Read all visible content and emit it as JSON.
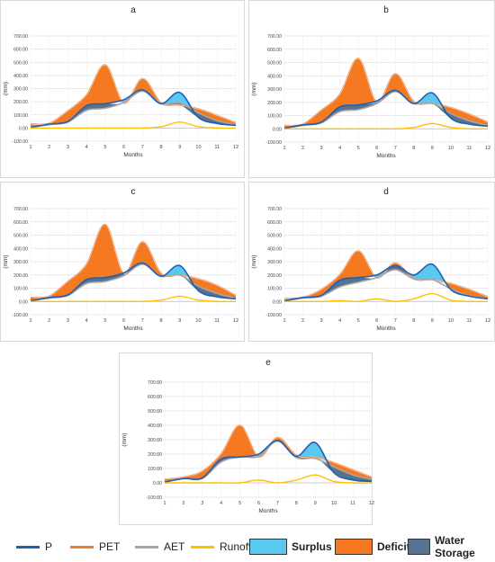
{
  "colors": {
    "P": "#1f5fb4",
    "PET": "#ed7d31",
    "AET": "#a6a6a6",
    "Runoff": "#ffc000",
    "Surplus": "#5bc8ef",
    "Deficit": "#f47920",
    "WaterStorage": "#56728e"
  },
  "legend": {
    "p": "P",
    "pet": "PET",
    "aet": "AET",
    "runoff": "Runoff",
    "surplus": "Surplus",
    "deficit": "Deficit",
    "storage": "Water Storage"
  },
  "chart_data": [
    {
      "type": "area",
      "title": "a",
      "xlabel": "Months",
      "ylabel": "(mm)",
      "x": [
        1,
        2,
        3,
        4,
        5,
        6,
        7,
        8,
        9,
        10,
        11,
        12
      ],
      "ylim": [
        -100,
        700
      ],
      "yticks": [
        "-100.00",
        "0.00",
        "100.00",
        "200.00",
        "300.00",
        "400.00",
        "500.00",
        "600.00",
        "700.00"
      ],
      "grid": true,
      "series": [
        {
          "name": "P",
          "values": [
            5,
            30,
            50,
            170,
            185,
            215,
            290,
            185,
            270,
            80,
            35,
            20
          ]
        },
        {
          "name": "PET",
          "values": [
            30,
            35,
            130,
            250,
            480,
            190,
            375,
            190,
            175,
            145,
            95,
            40
          ]
        },
        {
          "name": "AET",
          "values": [
            5,
            25,
            45,
            135,
            150,
            195,
            280,
            185,
            190,
            115,
            55,
            25
          ]
        },
        {
          "name": "Runoff",
          "values": [
            0,
            0,
            0,
            0,
            0,
            0,
            0,
            10,
            45,
            10,
            0,
            0
          ]
        }
      ]
    },
    {
      "type": "area",
      "title": "b",
      "xlabel": "Months",
      "ylabel": "(mm)",
      "x": [
        1,
        2,
        3,
        4,
        5,
        6,
        7,
        8,
        9,
        10,
        11,
        12
      ],
      "ylim": [
        -100,
        700
      ],
      "yticks": [
        "-100.00",
        "0.00",
        "100.00",
        "200.00",
        "300.00",
        "400.00",
        "500.00",
        "600.00",
        "700.00"
      ],
      "grid": true,
      "series": [
        {
          "name": "P",
          "values": [
            5,
            30,
            50,
            165,
            180,
            210,
            290,
            190,
            270,
            80,
            35,
            20
          ]
        },
        {
          "name": "PET",
          "values": [
            25,
            35,
            140,
            260,
            530,
            200,
            415,
            205,
            190,
            160,
            110,
            50
          ]
        },
        {
          "name": "AET",
          "values": [
            5,
            25,
            45,
            130,
            145,
            190,
            280,
            190,
            195,
            115,
            60,
            25
          ]
        },
        {
          "name": "Runoff",
          "values": [
            0,
            0,
            0,
            0,
            0,
            0,
            0,
            10,
            40,
            10,
            0,
            0
          ]
        }
      ]
    },
    {
      "type": "area",
      "title": "c",
      "xlabel": "Months",
      "ylabel": "(mm)",
      "x": [
        1,
        2,
        3,
        4,
        5,
        6,
        7,
        8,
        9,
        10,
        11,
        12
      ],
      "ylim": [
        -100,
        700
      ],
      "yticks": [
        "-100.00",
        "0.00",
        "100.00",
        "200.00",
        "300.00",
        "400.00",
        "500.00",
        "600.00",
        "700.00"
      ],
      "grid": true,
      "series": [
        {
          "name": "P",
          "values": [
            5,
            30,
            50,
            165,
            180,
            215,
            290,
            190,
            270,
            80,
            35,
            20
          ]
        },
        {
          "name": "PET",
          "values": [
            30,
            40,
            150,
            280,
            580,
            210,
            450,
            210,
            200,
            170,
            120,
            45
          ]
        },
        {
          "name": "AET",
          "values": [
            5,
            25,
            45,
            135,
            150,
            195,
            280,
            190,
            200,
            115,
            60,
            25
          ]
        },
        {
          "name": "Runoff",
          "values": [
            0,
            0,
            0,
            0,
            0,
            0,
            0,
            10,
            40,
            10,
            0,
            0
          ]
        }
      ]
    },
    {
      "type": "area",
      "title": "d",
      "xlabel": "Months",
      "ylabel": "(mm)",
      "x": [
        1,
        2,
        3,
        4,
        5,
        6,
        7,
        8,
        9,
        10,
        11,
        12
      ],
      "ylim": [
        -100,
        700
      ],
      "yticks": [
        "-100.00",
        "0.00",
        "100.00",
        "200.00",
        "300.00",
        "400.00",
        "500.00",
        "600.00",
        "700.00"
      ],
      "grid": true,
      "series": [
        {
          "name": "P",
          "values": [
            5,
            30,
            45,
            160,
            180,
            200,
            270,
            200,
            280,
            90,
            40,
            20
          ]
        },
        {
          "name": "PET",
          "values": [
            20,
            30,
            90,
            200,
            380,
            180,
            290,
            170,
            165,
            135,
            90,
            35
          ]
        },
        {
          "name": "AET",
          "values": [
            5,
            25,
            40,
            110,
            145,
            180,
            240,
            170,
            165,
            95,
            45,
            20
          ]
        },
        {
          "name": "Runoff",
          "values": [
            0,
            0,
            0,
            5,
            0,
            20,
            0,
            20,
            60,
            10,
            0,
            0
          ]
        }
      ]
    },
    {
      "type": "area",
      "title": "e",
      "xlabel": "Months",
      "ylabel": "(mm)",
      "x": [
        1,
        2,
        3,
        4,
        5,
        6,
        7,
        8,
        9,
        10,
        11,
        12
      ],
      "ylim": [
        -100,
        700
      ],
      "yticks": [
        "-100.00",
        "0.00",
        "100.00",
        "200.00",
        "300.00",
        "400.00",
        "500.00",
        "600.00",
        "700.00"
      ],
      "grid": true,
      "series": [
        {
          "name": "P",
          "values": [
            5,
            30,
            35,
            165,
            180,
            200,
            295,
            185,
            280,
            70,
            20,
            10
          ]
        },
        {
          "name": "PET",
          "values": [
            25,
            40,
            80,
            200,
            400,
            180,
            315,
            190,
            180,
            140,
            90,
            40
          ]
        },
        {
          "name": "AET",
          "values": [
            5,
            30,
            30,
            145,
            180,
            185,
            290,
            175,
            170,
            110,
            55,
            25
          ]
        },
        {
          "name": "Runoff",
          "values": [
            0,
            0,
            0,
            0,
            0,
            20,
            0,
            20,
            55,
            10,
            0,
            0
          ]
        }
      ]
    }
  ]
}
